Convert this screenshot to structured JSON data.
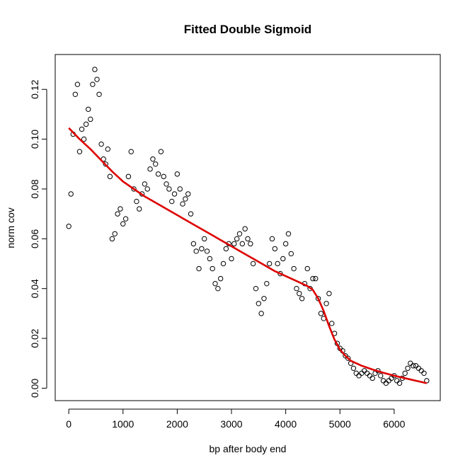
{
  "chart_data": {
    "type": "scatter",
    "title": "Fitted Double Sigmoid",
    "xlabel": "bp after body end",
    "ylabel": "norm cov",
    "xlim": [
      -250,
      6850
    ],
    "ylim": [
      -0.005,
      0.134
    ],
    "xticks": [
      0,
      1000,
      2000,
      3000,
      4000,
      5000,
      6000
    ],
    "yticks": [
      0.0,
      0.02,
      0.04,
      0.06,
      0.08,
      0.1,
      0.12
    ],
    "ytick_labels": [
      "0.00",
      "0.02",
      "0.04",
      "0.06",
      "0.08",
      "0.10",
      "0.12"
    ],
    "grid": false,
    "legend": "none",
    "series": [
      {
        "type": "scatter",
        "marker": "open-circle",
        "color": "#000000",
        "x": [
          0,
          40,
          80,
          120,
          160,
          200,
          240,
          280,
          320,
          360,
          400,
          440,
          480,
          520,
          560,
          600,
          640,
          680,
          720,
          760,
          800,
          850,
          900,
          950,
          1000,
          1050,
          1100,
          1150,
          1200,
          1250,
          1300,
          1350,
          1400,
          1450,
          1500,
          1550,
          1600,
          1650,
          1700,
          1750,
          1800,
          1850,
          1900,
          1950,
          2000,
          2050,
          2100,
          2150,
          2200,
          2250,
          2300,
          2350,
          2400,
          2450,
          2500,
          2550,
          2600,
          2650,
          2700,
          2750,
          2800,
          2850,
          2900,
          2950,
          3000,
          3050,
          3100,
          3150,
          3200,
          3250,
          3300,
          3350,
          3400,
          3450,
          3500,
          3550,
          3600,
          3650,
          3700,
          3750,
          3800,
          3850,
          3900,
          3950,
          4000,
          4050,
          4100,
          4150,
          4200,
          4250,
          4300,
          4350,
          4400,
          4450,
          4500,
          4550,
          4600,
          4650,
          4700,
          4750,
          4800,
          4850,
          4900,
          4950,
          5000,
          5050,
          5100,
          5150,
          5200,
          5250,
          5300,
          5350,
          5400,
          5450,
          5500,
          5550,
          5600,
          5650,
          5700,
          5750,
          5800,
          5850,
          5900,
          5950,
          6000,
          6050,
          6100,
          6150,
          6200,
          6250,
          6300,
          6350,
          6400,
          6450,
          6500,
          6550,
          6600
        ],
        "y": [
          0.065,
          0.078,
          0.102,
          0.118,
          0.122,
          0.095,
          0.104,
          0.1,
          0.106,
          0.112,
          0.108,
          0.122,
          0.128,
          0.124,
          0.118,
          0.098,
          0.092,
          0.09,
          0.096,
          0.085,
          0.06,
          0.062,
          0.07,
          0.072,
          0.066,
          0.068,
          0.085,
          0.095,
          0.08,
          0.075,
          0.072,
          0.078,
          0.082,
          0.08,
          0.088,
          0.092,
          0.09,
          0.086,
          0.095,
          0.085,
          0.082,
          0.08,
          0.075,
          0.078,
          0.086,
          0.08,
          0.074,
          0.076,
          0.078,
          0.07,
          0.058,
          0.055,
          0.048,
          0.056,
          0.06,
          0.055,
          0.052,
          0.048,
          0.042,
          0.04,
          0.044,
          0.05,
          0.056,
          0.058,
          0.052,
          0.058,
          0.06,
          0.062,
          0.058,
          0.064,
          0.06,
          0.058,
          0.05,
          0.04,
          0.034,
          0.03,
          0.036,
          0.042,
          0.05,
          0.06,
          0.056,
          0.05,
          0.046,
          0.052,
          0.058,
          0.062,
          0.054,
          0.048,
          0.04,
          0.038,
          0.036,
          0.042,
          0.048,
          0.04,
          0.044,
          0.044,
          0.036,
          0.03,
          0.028,
          0.034,
          0.038,
          0.026,
          0.022,
          0.018,
          0.016,
          0.015,
          0.013,
          0.012,
          0.01,
          0.008,
          0.006,
          0.005,
          0.006,
          0.007,
          0.006,
          0.005,
          0.004,
          0.006,
          0.007,
          0.005,
          0.003,
          0.002,
          0.003,
          0.004,
          0.005,
          0.003,
          0.002,
          0.004,
          0.006,
          0.008,
          0.01,
          0.009,
          0.009,
          0.008,
          0.007,
          0.006,
          0.003
        ]
      },
      {
        "type": "line",
        "color": "#dd0000",
        "x": [
          0,
          200,
          400,
          600,
          800,
          1000,
          1200,
          1400,
          1600,
          1800,
          2000,
          2200,
          2400,
          2600,
          2800,
          3000,
          3200,
          3400,
          3600,
          3800,
          4000,
          4200,
          4400,
          4500,
          4600,
          4700,
          4800,
          4900,
          5000,
          5100,
          5200,
          5400,
          5600,
          5800,
          6000,
          6200,
          6400,
          6600
        ],
        "y": [
          0.1045,
          0.1,
          0.096,
          0.0915,
          0.087,
          0.083,
          0.08,
          0.077,
          0.0745,
          0.072,
          0.0695,
          0.067,
          0.0645,
          0.062,
          0.0595,
          0.057,
          0.0545,
          0.052,
          0.0495,
          0.047,
          0.045,
          0.043,
          0.041,
          0.0395,
          0.036,
          0.031,
          0.025,
          0.0195,
          0.0155,
          0.013,
          0.011,
          0.009,
          0.0075,
          0.0062,
          0.005,
          0.004,
          0.003,
          0.002
        ]
      }
    ]
  }
}
